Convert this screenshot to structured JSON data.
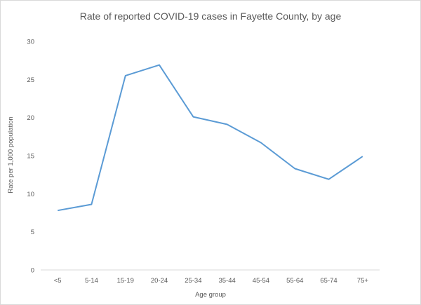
{
  "chart_data": {
    "type": "line",
    "title": "Rate of reported COVID-19 cases in Fayette County, by age",
    "xlabel": "Age group",
    "ylabel": "Rate per 1,000 population",
    "categories": [
      "<5",
      "5-14",
      "15-19",
      "20-24",
      "25-34",
      "35-44",
      "45-54",
      "55-64",
      "65-74",
      "75+"
    ],
    "series": [
      {
        "values": [
          7.8,
          8.6,
          25.5,
          26.9,
          20.1,
          19.1,
          16.7,
          13.3,
          11.9,
          14.9
        ]
      }
    ],
    "ylim": [
      0,
      30
    ],
    "yticks": [
      0,
      5,
      10,
      15,
      20,
      25,
      30
    ],
    "grid": false,
    "legend": "none",
    "line_color": "#5b9bd5"
  }
}
